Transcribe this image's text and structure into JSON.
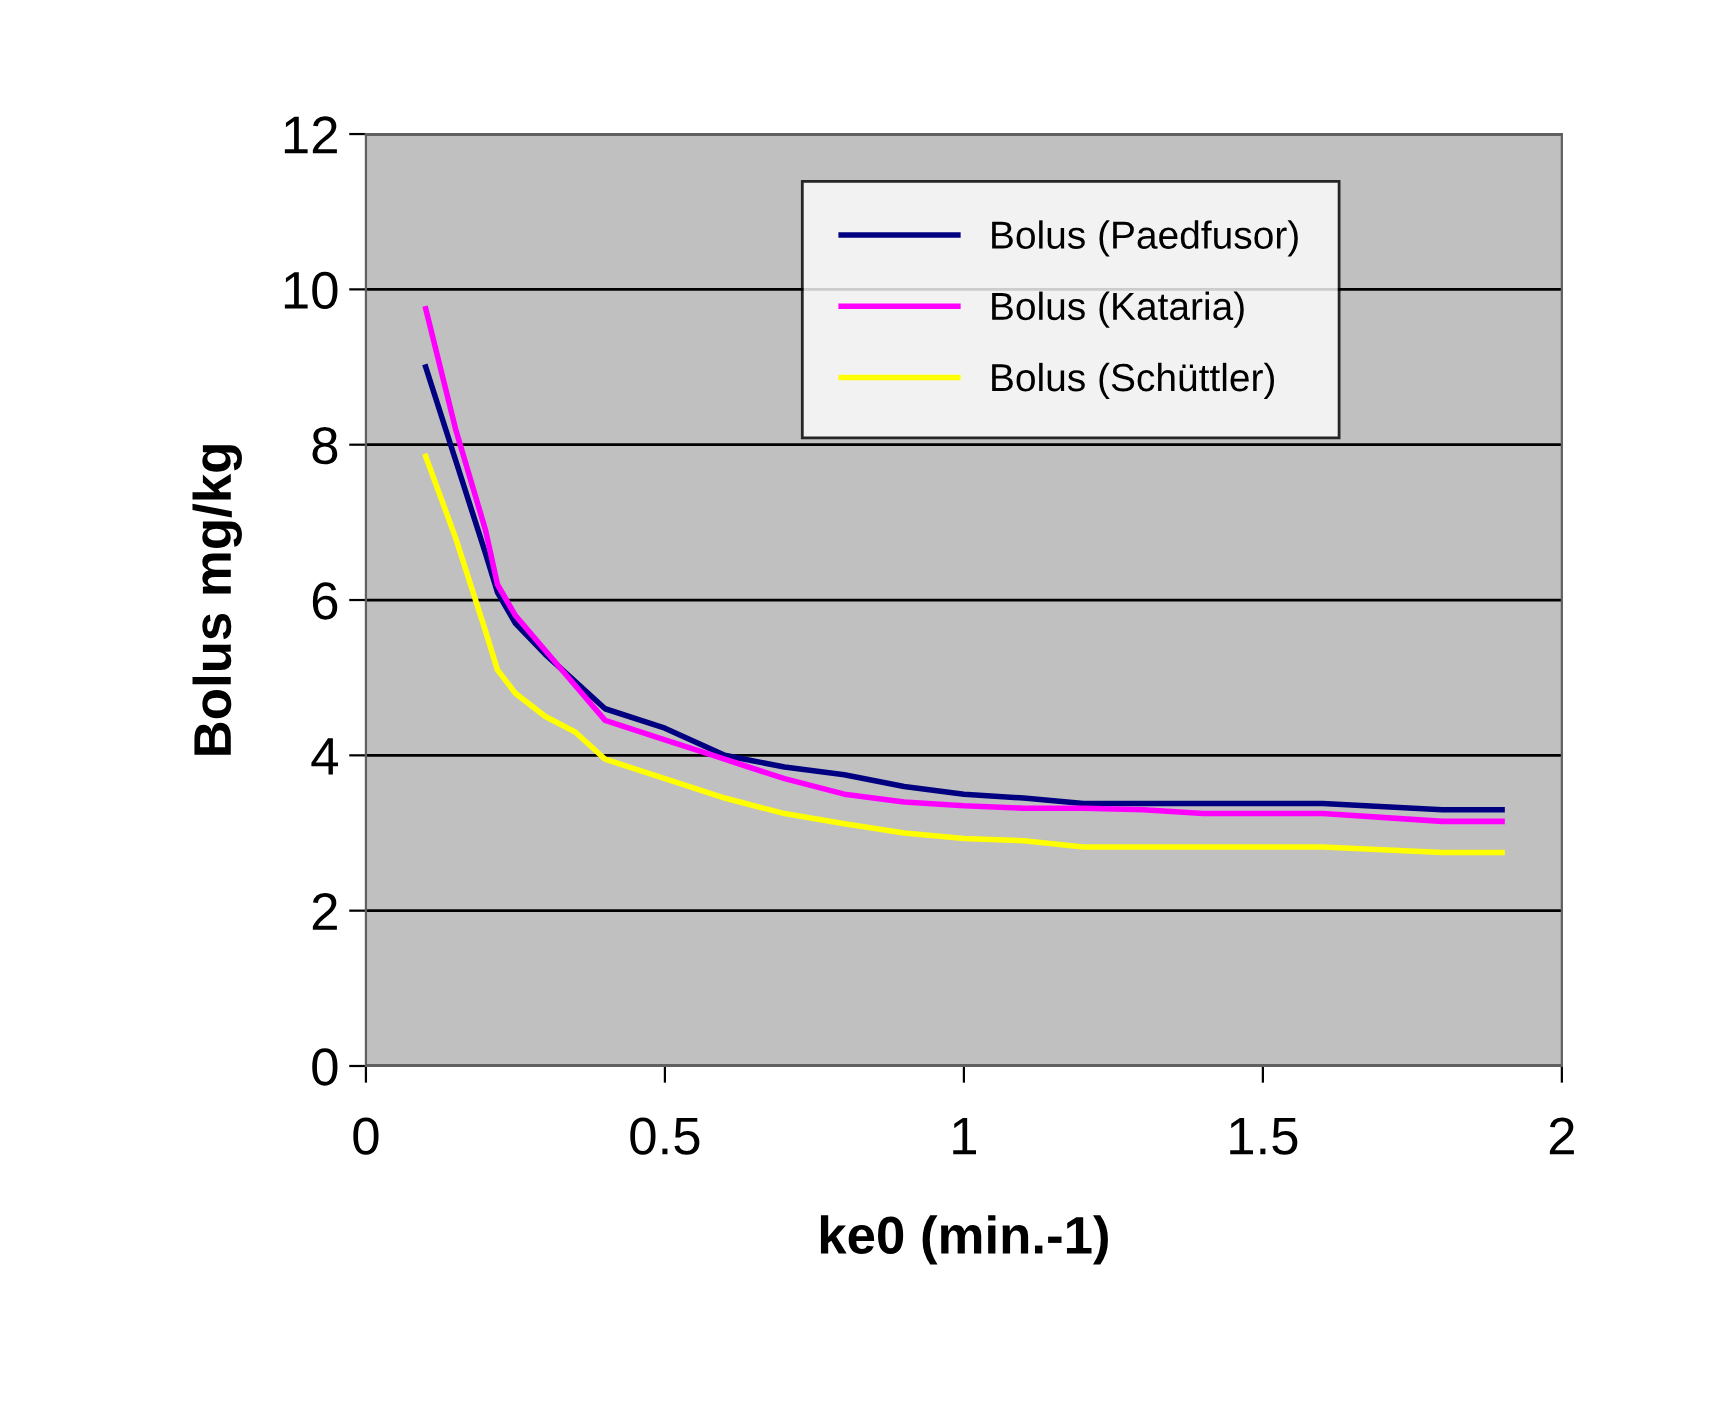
{
  "chart_data": {
    "type": "line",
    "xlabel": "ke0 (min.-1)",
    "ylabel": "Bolus mg/kg",
    "x": [
      0.1,
      0.15,
      0.2,
      0.22,
      0.25,
      0.3,
      0.35,
      0.4,
      0.5,
      0.6,
      0.7,
      0.8,
      0.9,
      1.0,
      1.1,
      1.2,
      1.3,
      1.4,
      1.6,
      1.8,
      1.9
    ],
    "series": [
      {
        "name": "Bolus (Paedfusor)",
        "color": "#000080",
        "values": [
          9.0,
          7.8,
          6.6,
          6.1,
          5.7,
          5.3,
          4.95,
          4.6,
          4.35,
          4.0,
          3.85,
          3.75,
          3.6,
          3.5,
          3.45,
          3.38,
          3.38,
          3.38,
          3.38,
          3.3,
          3.3
        ]
      },
      {
        "name": "Bolus (Kataria)",
        "color": "#ff00ff",
        "values": [
          9.75,
          8.2,
          6.9,
          6.2,
          5.8,
          5.35,
          4.9,
          4.45,
          4.2,
          3.95,
          3.7,
          3.5,
          3.4,
          3.35,
          3.32,
          3.32,
          3.3,
          3.25,
          3.25,
          3.15,
          3.15
        ]
      },
      {
        "name": "Bolus (Schüttler)",
        "color": "#ffff00",
        "values": [
          7.85,
          6.8,
          5.6,
          5.1,
          4.8,
          4.5,
          4.3,
          3.95,
          3.7,
          3.45,
          3.25,
          3.12,
          3.0,
          2.93,
          2.9,
          2.82,
          2.82,
          2.82,
          2.82,
          2.75,
          2.75
        ]
      }
    ],
    "xlim": [
      0,
      2
    ],
    "xticks": [
      0,
      0.5,
      1,
      1.5,
      2
    ],
    "ylim": [
      0,
      12
    ],
    "yticks": [
      0,
      2,
      4,
      6,
      8,
      10,
      12
    ],
    "grid": "y",
    "legend": "top right",
    "marker": "none",
    "line_style": "solid"
  }
}
